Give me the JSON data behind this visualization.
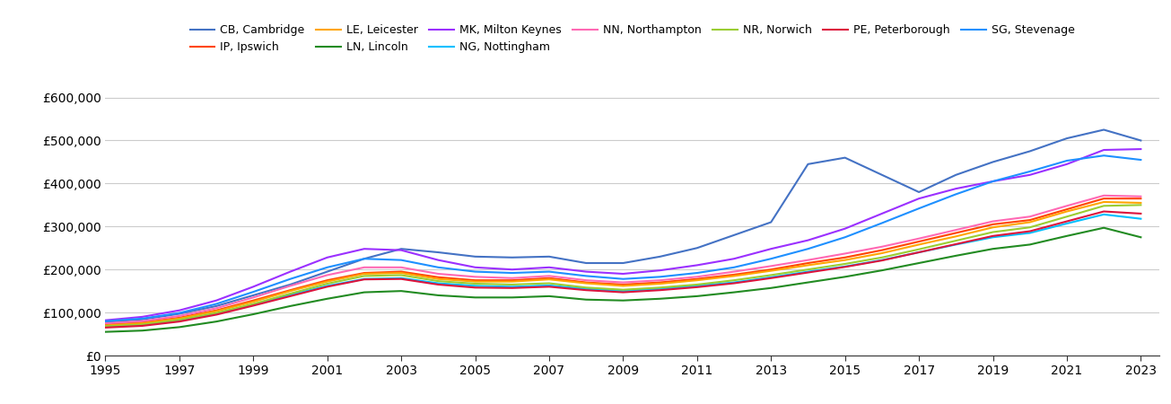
{
  "series": {
    "CB, Cambridge": {
      "color": "#4472C4",
      "values": [
        78000,
        84000,
        97000,
        115000,
        140000,
        165000,
        195000,
        225000,
        248000,
        240000,
        230000,
        228000,
        230000,
        215000,
        215000,
        230000,
        250000,
        280000,
        310000,
        445000,
        460000,
        420000,
        380000,
        420000,
        450000,
        475000,
        505000,
        525000,
        500000
      ]
    },
    "IP, Ipswich": {
      "color": "#FF4500",
      "values": [
        72000,
        77000,
        88000,
        105000,
        128000,
        152000,
        175000,
        192000,
        195000,
        182000,
        175000,
        175000,
        180000,
        170000,
        165000,
        170000,
        178000,
        188000,
        200000,
        215000,
        228000,
        245000,
        265000,
        285000,
        305000,
        315000,
        340000,
        365000,
        365000
      ]
    },
    "LE, Leicester": {
      "color": "#FFA500",
      "values": [
        70000,
        75000,
        86000,
        103000,
        125000,
        150000,
        172000,
        190000,
        192000,
        178000,
        172000,
        172000,
        177000,
        168000,
        162000,
        167000,
        175000,
        185000,
        197000,
        210000,
        222000,
        238000,
        258000,
        277000,
        298000,
        310000,
        335000,
        357000,
        355000
      ]
    },
    "LN, Lincoln": {
      "color": "#228B22",
      "values": [
        55000,
        58000,
        66000,
        79000,
        96000,
        115000,
        132000,
        147000,
        150000,
        140000,
        135000,
        135000,
        138000,
        130000,
        128000,
        132000,
        138000,
        147000,
        157000,
        170000,
        183000,
        198000,
        215000,
        232000,
        248000,
        258000,
        278000,
        297000,
        275000
      ]
    },
    "MK, Milton Keynes": {
      "color": "#9B30FF",
      "values": [
        82000,
        90000,
        105000,
        128000,
        160000,
        195000,
        228000,
        248000,
        245000,
        222000,
        205000,
        200000,
        205000,
        195000,
        190000,
        198000,
        210000,
        225000,
        248000,
        268000,
        295000,
        330000,
        365000,
        388000,
        405000,
        420000,
        445000,
        478000,
        480000
      ]
    },
    "NG, Nottingham": {
      "color": "#00BFFF",
      "values": [
        67000,
        71000,
        81000,
        97000,
        118000,
        141000,
        162000,
        178000,
        180000,
        168000,
        162000,
        160000,
        163000,
        155000,
        150000,
        155000,
        162000,
        170000,
        182000,
        195000,
        207000,
        222000,
        240000,
        258000,
        275000,
        285000,
        307000,
        328000,
        318000
      ]
    },
    "NN, Northampton": {
      "color": "#FF69B4",
      "values": [
        75000,
        80000,
        92000,
        110000,
        135000,
        162000,
        187000,
        205000,
        205000,
        190000,
        183000,
        180000,
        185000,
        175000,
        170000,
        175000,
        183000,
        195000,
        208000,
        222000,
        237000,
        253000,
        272000,
        292000,
        312000,
        323000,
        348000,
        372000,
        370000
      ]
    },
    "NR, Norwich": {
      "color": "#9ACD32",
      "values": [
        68000,
        72000,
        83000,
        99000,
        120000,
        144000,
        167000,
        185000,
        187000,
        173000,
        167000,
        165000,
        168000,
        158000,
        153000,
        158000,
        165000,
        175000,
        187000,
        200000,
        213000,
        228000,
        247000,
        267000,
        287000,
        298000,
        323000,
        348000,
        350000
      ]
    },
    "PE, Peterborough": {
      "color": "#DC143C",
      "values": [
        65000,
        69000,
        79000,
        95000,
        116000,
        138000,
        160000,
        177000,
        178000,
        165000,
        158000,
        157000,
        160000,
        152000,
        147000,
        152000,
        159000,
        168000,
        180000,
        193000,
        206000,
        221000,
        240000,
        259000,
        278000,
        289000,
        312000,
        335000,
        330000
      ]
    },
    "SG, Stevenage": {
      "color": "#1E90FF",
      "values": [
        80000,
        86000,
        99000,
        120000,
        148000,
        178000,
        205000,
        225000,
        222000,
        205000,
        195000,
        192000,
        195000,
        185000,
        178000,
        183000,
        192000,
        205000,
        225000,
        248000,
        275000,
        308000,
        342000,
        375000,
        405000,
        428000,
        453000,
        465000,
        455000
      ]
    }
  },
  "years": [
    1995,
    1996,
    1997,
    1998,
    1999,
    2000,
    2001,
    2002,
    2003,
    2004,
    2005,
    2006,
    2007,
    2008,
    2009,
    2010,
    2011,
    2012,
    2013,
    2014,
    2015,
    2016,
    2017,
    2018,
    2019,
    2020,
    2021,
    2022,
    2023
  ],
  "ylim": [
    0,
    620000
  ],
  "yticks": [
    0,
    100000,
    200000,
    300000,
    400000,
    500000,
    600000
  ],
  "ytick_labels": [
    "£0",
    "£100,000",
    "£200,000",
    "£300,000",
    "£400,000",
    "£500,000",
    "£600,000"
  ],
  "xticks": [
    1995,
    1997,
    1999,
    2001,
    2003,
    2005,
    2007,
    2009,
    2011,
    2013,
    2015,
    2017,
    2019,
    2021,
    2023
  ],
  "background_color": "#ffffff",
  "grid_color": "#cccccc",
  "legend_fontsize": 9,
  "tick_fontsize": 10,
  "legend_order": [
    "CB, Cambridge",
    "IP, Ipswich",
    "LE, Leicester",
    "LN, Lincoln",
    "MK, Milton Keynes",
    "NG, Nottingham",
    "NN, Northampton",
    "NR, Norwich",
    "PE, Peterborough",
    "SG, Stevenage"
  ]
}
